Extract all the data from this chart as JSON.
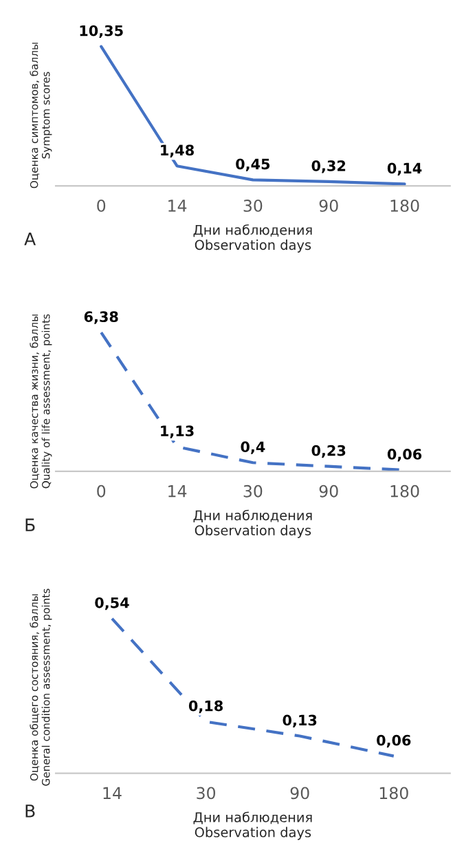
{
  "chart_data": [
    {
      "type": "line",
      "categories": [
        "0",
        "14",
        "30",
        "90",
        "180"
      ],
      "xlabel": "Дни наблюдения\nObservation days",
      "ylabel": "Оценка симптомов, баллы\nSymptom scores",
      "annotations": [
        "А"
      ],
      "series": [
        {
          "color": "#4472c4",
          "values": [
            10.35,
            1.48,
            0.45,
            0.32,
            0.14
          ],
          "value_labels": [
            "10,35",
            "1,48",
            "0,45",
            "0,32",
            "0,14"
          ]
        }
      ],
      "line_style": "solid",
      "grid": false,
      "legend": false
    },
    {
      "type": "line",
      "categories": [
        "0",
        "14",
        "30",
        "90",
        "180"
      ],
      "xlabel": "Дни наблюдения\nObservation days",
      "ylabel": "Оценка качества жизни, баллы\nQuality of life assessment, points",
      "annotations": [
        "Б"
      ],
      "series": [
        {
          "color": "#4472c4",
          "values": [
            6.38,
            1.13,
            0.4,
            0.23,
            0.06
          ],
          "value_labels": [
            "6,38",
            "1,13",
            "0,4",
            "0,23",
            "0,06"
          ]
        }
      ],
      "line_style": "dashed",
      "grid": false,
      "legend": false
    },
    {
      "type": "line",
      "categories": [
        "14",
        "30",
        "90",
        "180"
      ],
      "xlabel": "Дни наблюдения\nObservation days",
      "ylabel": "Оценка общего состояния, баллы\nGeneral condition assessment, points",
      "annotations": [
        "В"
      ],
      "series": [
        {
          "color": "#4472c4",
          "values": [
            0.54,
            0.18,
            0.13,
            0.06
          ],
          "value_labels": [
            "0,54",
            "0,18",
            "0,13",
            "0,06"
          ]
        }
      ],
      "line_style": "dashed",
      "grid": false,
      "legend": false
    }
  ]
}
